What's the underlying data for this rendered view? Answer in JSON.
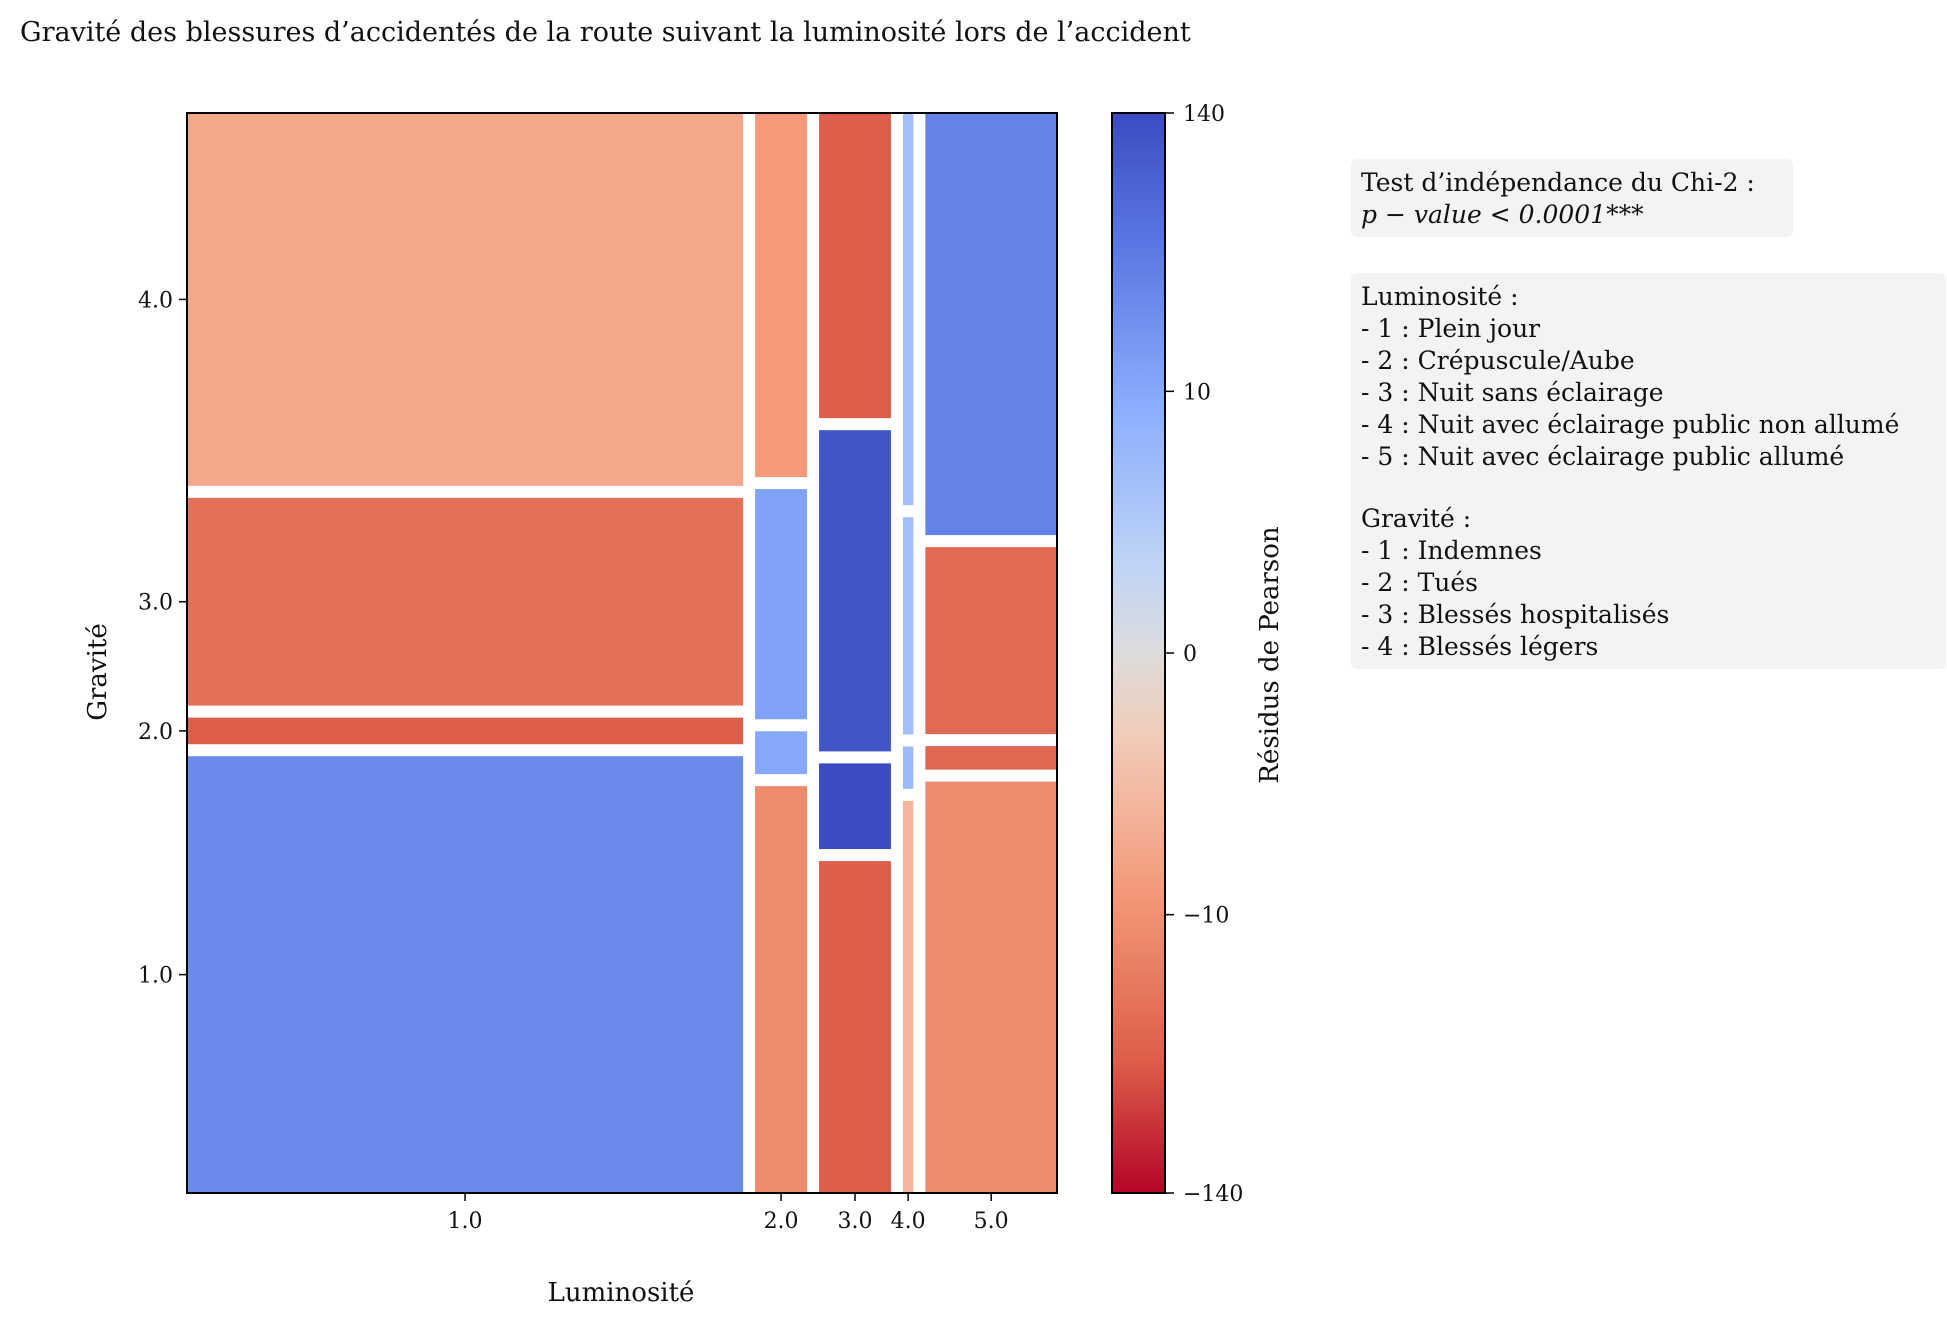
{
  "chart_data": {
    "type": "mosaic",
    "title": "Gravité des blessures d’accidentés de la route suivant la luminosité lors de l’accident",
    "xlabel": "Luminosité",
    "ylabel": "Gravité",
    "x_ticks": [
      "1.0",
      "2.0",
      "3.0",
      "4.0",
      "5.0"
    ],
    "y_ticks": [
      "1.0",
      "2.0",
      "3.0",
      "4.0"
    ],
    "colorbar": {
      "label": "Résidus de Pearson",
      "ticks": [
        "140",
        "10",
        "0",
        "−10",
        "−140"
      ],
      "range": [
        -140,
        140
      ],
      "scale": "symlog",
      "colormap": "coolwarm"
    },
    "columns": [
      {
        "category": "1.0",
        "width_fraction": 0.642,
        "segments": [
          {
            "gravite": "1.0",
            "height_fraction": 0.41,
            "residual": 25
          },
          {
            "gravite": "2.0",
            "height_fraction": 0.025,
            "residual": -40
          },
          {
            "gravite": "3.0",
            "height_fraction": 0.195,
            "residual": -25
          },
          {
            "gravite": "4.0",
            "height_fraction": 0.35,
            "residual": -5
          }
        ]
      },
      {
        "category": "2.0",
        "width_fraction": 0.06,
        "segments": [
          {
            "gravite": "1.0",
            "height_fraction": 0.38,
            "residual": -12
          },
          {
            "gravite": "2.0",
            "height_fraction": 0.04,
            "residual": 10
          },
          {
            "gravite": "3.0",
            "height_fraction": 0.215,
            "residual": 12
          },
          {
            "gravite": "4.0",
            "height_fraction": 0.34,
            "residual": -8
          }
        ]
      },
      {
        "category": "3.0",
        "width_fraction": 0.083,
        "segments": [
          {
            "gravite": "1.0",
            "height_fraction": 0.31,
            "residual": -40
          },
          {
            "gravite": "2.0",
            "height_fraction": 0.08,
            "residual": 140
          },
          {
            "gravite": "3.0",
            "height_fraction": 0.3,
            "residual": 110
          },
          {
            "gravite": "4.0",
            "height_fraction": 0.285,
            "residual": -40
          }
        ]
      },
      {
        "category": "4.0",
        "width_fraction": 0.012,
        "segments": [
          {
            "gravite": "1.0",
            "height_fraction": 0.37,
            "residual": -3
          },
          {
            "gravite": "2.0",
            "height_fraction": 0.04,
            "residual": 5
          },
          {
            "gravite": "3.0",
            "height_fraction": 0.205,
            "residual": 4
          },
          {
            "gravite": "4.0",
            "height_fraction": 0.37,
            "residual": 4
          }
        ]
      },
      {
        "category": "5.0",
        "width_fraction": 0.152,
        "segments": [
          {
            "gravite": "1.0",
            "height_fraction": 0.385,
            "residual": -12
          },
          {
            "gravite": "2.0",
            "height_fraction": 0.022,
            "residual": -32
          },
          {
            "gravite": "3.0",
            "height_fraction": 0.175,
            "residual": -30
          },
          {
            "gravite": "4.0",
            "height_fraction": 0.395,
            "residual": 30
          }
        ]
      }
    ]
  },
  "chi_box": {
    "line1": "Test d’indépendance du Chi-2 :",
    "line2": "p − value < 0.0001***"
  },
  "legend_box": {
    "lum_title": "Luminosité :",
    "lum_items": [
      "- 1 : Plein jour",
      "- 2 : Crépuscule/Aube",
      "- 3 : Nuit sans éclairage",
      "- 4 : Nuit avec éclairage public non allumé",
      "- 5 : Nuit avec éclairage public allumé"
    ],
    "grav_title": "Gravité :",
    "grav_items": [
      "- 1 : Indemnes",
      "- 2 : Tués",
      "- 3 : Blessés hospitalisés",
      "- 4 : Blessés légers"
    ]
  }
}
